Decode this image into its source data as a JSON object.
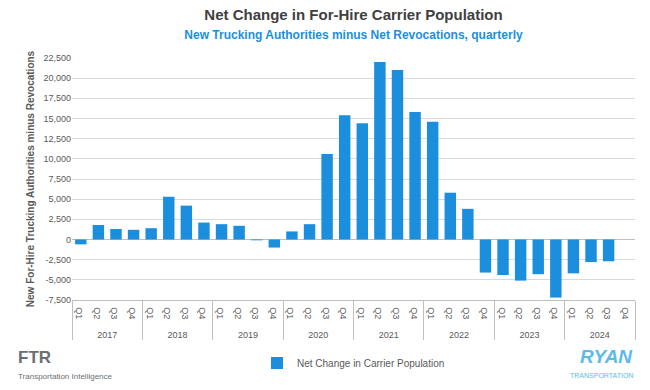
{
  "chart_data": {
    "type": "bar",
    "title": "Net Change in For-Hire Carrier Population",
    "subtitle": "New Trucking Authorities minus Net Revocations, quarterly",
    "y_label": "New For-Hire Trucking Authorities minus Revocations",
    "years": [
      "2017",
      "2018",
      "2019",
      "2020",
      "2021",
      "2022",
      "2023",
      "2024"
    ],
    "categories": [
      "Q1",
      "Q2",
      "Q3",
      "Q4",
      "Q1",
      "Q2",
      "Q3",
      "Q4",
      "Q1",
      "Q2",
      "Q3",
      "Q4",
      "Q1",
      "Q2",
      "Q3",
      "Q4",
      "Q1",
      "Q2",
      "Q3",
      "Q4",
      "Q1",
      "Q2",
      "Q3",
      "Q4",
      "Q1",
      "Q2",
      "Q3",
      "Q4",
      "Q1",
      "Q2",
      "Q3",
      "Q4"
    ],
    "series": [
      {
        "name": "Net Change in Carrier Population",
        "color": "#1b8fde",
        "values": [
          -600,
          1800,
          1300,
          1200,
          1400,
          5300,
          4200,
          2100,
          1900,
          1700,
          -100,
          -1000,
          1000,
          1900,
          10600,
          15400,
          14400,
          22000,
          21000,
          15800,
          14600,
          5800,
          3800,
          -4100,
          -4400,
          -5100,
          -4300,
          -7200,
          -4200,
          -2800,
          -2700,
          null
        ]
      }
    ],
    "ylim": [
      -7500,
      22500
    ],
    "yticks": [
      {
        "value": -7500,
        "label": "-7,500"
      },
      {
        "value": -5000,
        "label": "-5,000"
      },
      {
        "value": -2500,
        "label": "-2,500"
      },
      0,
      {
        "value": 2500,
        "label": "2,500"
      },
      {
        "value": 5000,
        "label": "5,000"
      },
      {
        "value": 7500,
        "label": "7,500"
      },
      {
        "value": 10000,
        "label": "10,000"
      },
      {
        "value": 12500,
        "label": "12,500"
      },
      {
        "value": 15000,
        "label": "15,000"
      },
      {
        "value": 17500,
        "label": "17,500"
      },
      {
        "value": 20000,
        "label": "20,000"
      },
      {
        "value": 22500,
        "label": "22,500"
      }
    ],
    "grid": true,
    "legend": "bottom",
    "annotations": [
      "FTR",
      "Transportation Intelligence",
      "RYAN",
      "TRANSPORTATION"
    ]
  }
}
